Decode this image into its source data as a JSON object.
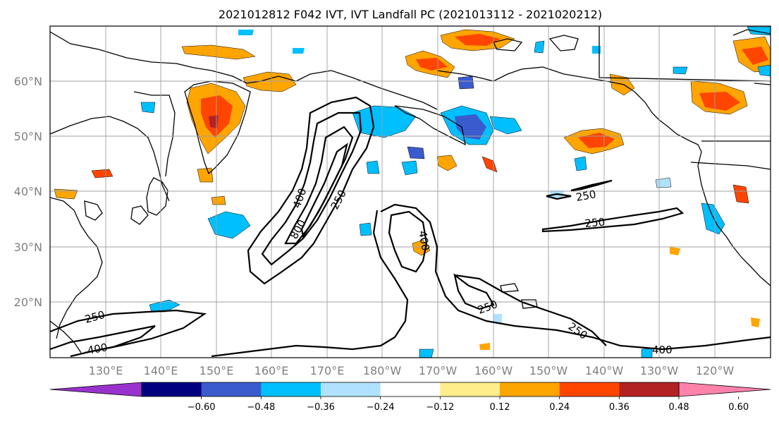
{
  "title": "2021012812 F042 IVT, IVT Landfall PC (2021013112 - 2021020212)",
  "lat_labels": [
    "60°N",
    "50°N",
    "40°N",
    "30°N",
    "20°N"
  ],
  "lon_labels": [
    "130°E",
    "140°E",
    "150°E",
    "160°E",
    "170°E",
    "180°W",
    "170°W",
    "160°W",
    "150°W",
    "140°W",
    "130°W",
    "120°W"
  ],
  "colorbar": {
    "ticks": [
      "−0.60",
      "−0.48",
      "−0.36",
      "−0.24",
      "−0.12",
      "0.12",
      "0.24",
      "0.36",
      "0.48",
      "0.60"
    ],
    "colors": [
      "#9932cc",
      "#000080",
      "#3a5bcd",
      "#00bfff",
      "#b0e2ff",
      "#ffffff",
      "#ffec8b",
      "#ffa500",
      "#ff4500",
      "#b22222",
      "#ff82ab"
    ]
  },
  "contour_labels": {
    "c1": "400",
    "c2": "800",
    "c3": "250",
    "c4": "250",
    "c5": "250",
    "c6": "400",
    "c7": "250",
    "c8": "250",
    "c9": "250",
    "c10": "400",
    "c11": "400"
  },
  "colors": {
    "coast": "#000000",
    "grid": "#a0a0a0",
    "label": "#7f7f7f"
  }
}
